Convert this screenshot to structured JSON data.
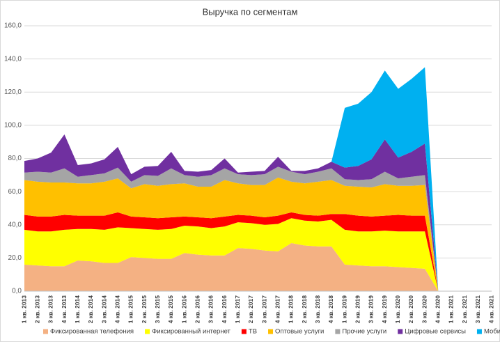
{
  "chart_data": {
    "type": "stacked_area",
    "title": "Выручка по сегментам",
    "categories": [
      "1 кв. 2013",
      "2 кв. 2013",
      "3 кв. 2013",
      "4 кв. 2013",
      "1 кв. 2014",
      "2 кв. 2014",
      "3 кв. 2014",
      "4 кв. 2014",
      "1 кв. 2015",
      "2 кв. 2015",
      "3 кв. 2015",
      "4 кв. 2015",
      "1 кв. 2016",
      "2 кв. 2016",
      "3 кв. 2016",
      "4 кв. 2016",
      "1 кв. 2017",
      "2 кв. 2017",
      "3 кв. 2017",
      "4 кв. 2017",
      "1 кв. 2018",
      "2 кв. 2018",
      "3 кв. 2018",
      "4 кв. 2018",
      "1 кв. 2019",
      "2 кв. 2019",
      "3 кв. 2019",
      "4 кв. 2019",
      "1 кв. 2020",
      "2 кв. 2020",
      "3 кв. 2020",
      "4 кв. 2020",
      "1 кв. 2021",
      "2 кв. 2021",
      "3 кв. 2021",
      "4 кв. 2021"
    ],
    "series": [
      {
        "name": "Фиксированная телефония",
        "color": "#f4b183",
        "values": [
          16,
          15.5,
          15,
          15,
          18.5,
          18,
          17,
          17,
          20.5,
          20,
          19.5,
          19.5,
          23,
          22,
          21.5,
          21.5,
          26,
          25.5,
          24.5,
          24,
          29,
          27.5,
          27,
          27,
          16,
          15.5,
          15,
          15,
          14.5,
          14,
          13.5,
          0,
          null,
          null,
          null,
          null
        ]
      },
      {
        "name": "Фиксированный интернет",
        "color": "#ffff00",
        "values": [
          21,
          20.5,
          21,
          22,
          19,
          19.5,
          20,
          21.5,
          17.5,
          17.5,
          17.5,
          18,
          16.5,
          17,
          16.5,
          17.5,
          15.5,
          15.5,
          15.5,
          16.5,
          15,
          15,
          15,
          16,
          21,
          20.5,
          21,
          21.5,
          21.5,
          22,
          22.5,
          0,
          null,
          null,
          null,
          null
        ]
      },
      {
        "name": "ТВ",
        "color": "#ff0000",
        "values": [
          9,
          9,
          9,
          9,
          8,
          8,
          8.5,
          9,
          7,
          7,
          7,
          7,
          5.5,
          5.5,
          6,
          6,
          4.5,
          4.5,
          4.5,
          5,
          3.5,
          3.5,
          3.5,
          3.5,
          9.5,
          9.5,
          9,
          9,
          10,
          9.5,
          9.5,
          0,
          null,
          null,
          null,
          null
        ]
      },
      {
        "name": "Оптовые услуги",
        "color": "#ffc000",
        "values": [
          21,
          21,
          20.5,
          19.5,
          19.5,
          19.5,
          20.5,
          20.5,
          17,
          20,
          19.5,
          20,
          20,
          18.5,
          19,
          22,
          19,
          18.5,
          19.5,
          23,
          18.5,
          19,
          20.5,
          20.5,
          17,
          17.5,
          17.5,
          19,
          17.5,
          18,
          18.5,
          0,
          null,
          null,
          null,
          null
        ]
      },
      {
        "name": "Прочие услуги",
        "color": "#a5a5a5",
        "values": [
          4.5,
          6,
          6,
          8.5,
          4,
          5,
          5,
          6.5,
          4,
          5.5,
          6,
          9.5,
          5,
          6,
          7,
          7,
          5.5,
          6,
          6.5,
          6.5,
          6,
          5.5,
          6,
          7,
          4,
          4,
          5,
          7.5,
          4.5,
          5.5,
          6,
          0,
          null,
          null,
          null,
          null
        ]
      },
      {
        "name": "Цифровые сервисы",
        "color": "#7030a0",
        "values": [
          7,
          8,
          12,
          20.5,
          7,
          7,
          8.5,
          12.5,
          4.5,
          5,
          6,
          10,
          2.5,
          3,
          3,
          6,
          1,
          2,
          2,
          6,
          0.5,
          2,
          2,
          4,
          7,
          8.5,
          12,
          19.5,
          12.5,
          15,
          19,
          0,
          null,
          null,
          null,
          null
        ]
      },
      {
        "name": "Мобильная связь",
        "color": "#00b0f0",
        "values": [
          0,
          0,
          0,
          0,
          0,
          0,
          0,
          0,
          0,
          0,
          0,
          0,
          0,
          0,
          0,
          0,
          0,
          0,
          0,
          0,
          0,
          0,
          0,
          0,
          36,
          37.5,
          40.5,
          41.5,
          41.5,
          44,
          46,
          0,
          null,
          null,
          null,
          null
        ]
      }
    ],
    "ylim": [
      0,
      160
    ],
    "yticks": [
      {
        "value": 0,
        "label": "0,0"
      },
      {
        "value": 20,
        "label": "20,0"
      },
      {
        "value": 40,
        "label": "40,0"
      },
      {
        "value": 60,
        "label": "60,0"
      },
      {
        "value": 80,
        "label": "80,0"
      },
      {
        "value": 100,
        "label": "100,0"
      },
      {
        "value": 120,
        "label": "120,0"
      },
      {
        "value": 140,
        "label": "140,0"
      },
      {
        "value": 160,
        "label": "160,0"
      }
    ],
    "grid": true,
    "legend": "bottom"
  }
}
